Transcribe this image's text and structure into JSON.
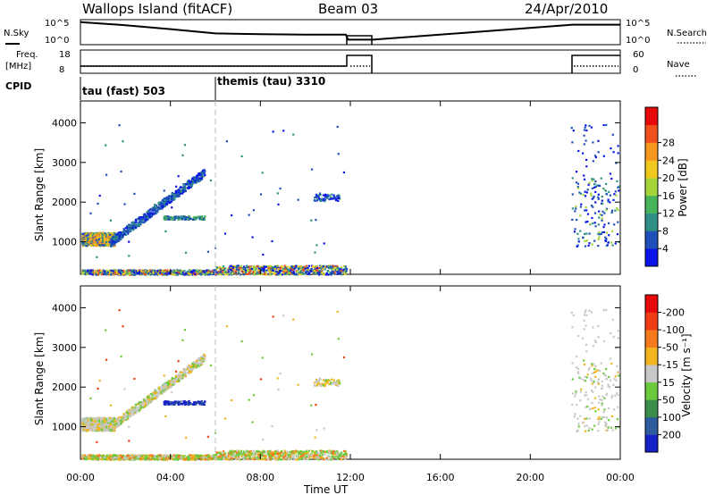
{
  "header": {
    "station": "Wallops Island (fitACF)",
    "beam": "Beam 03",
    "date": "24/Apr/2010"
  },
  "panels": {
    "nsky_label": "N.Sky",
    "nsearch_label": "N.Search",
    "nsky_ticks": [
      "10^5",
      "10^0"
    ],
    "freq_label_1": "Freq.",
    "freq_label_2": "[MHz]",
    "freq_ticks": [
      "18",
      "8"
    ],
    "nave_label": "Nave",
    "nave_ticks": [
      "60",
      "0"
    ],
    "cpid_label": "CPID",
    "cpid_entries": [
      "tau (fast) 503",
      "themis (tau) 3310"
    ]
  },
  "axes": {
    "ylabel": "Slant Range [km]",
    "xlabel": "Time UT",
    "yticks": [
      "1000",
      "2000",
      "3000",
      "4000"
    ],
    "xticks": [
      "00:00",
      "04:00",
      "08:00",
      "12:00",
      "16:00",
      "20:00",
      "00:00"
    ]
  },
  "power_scale": {
    "label": "Power [dB]",
    "ticks": [
      "4",
      "8",
      "12",
      "16",
      "20",
      "24",
      "28"
    ],
    "colors": [
      "#0a14e6",
      "#1f4fb8",
      "#2f8f86",
      "#47b35a",
      "#a4d43a",
      "#f0c81e",
      "#f5961e",
      "#f0501e",
      "#e60a0a"
    ]
  },
  "velocity_scale": {
    "label": "Velocity [m s⁻¹]",
    "ticks": [
      "200",
      "100",
      "50",
      "15",
      "-15",
      "-50",
      "-100",
      "-200"
    ],
    "colors": [
      "#1620c8",
      "#2e5a9e",
      "#3a8e4a",
      "#6ccb3c",
      "#c8c8c8",
      "#f0b41e",
      "#f57a1e",
      "#f03c14",
      "#e60a0a"
    ]
  },
  "chart_data": {
    "type": "heatmap",
    "title": "Wallops Island (fitACF)",
    "xlabel": "Time UT",
    "ylabel": "Slant Range [km]",
    "xlim": [
      0,
      24
    ],
    "ylim": [
      180,
      4550
    ],
    "regions": [
      {
        "t0": 0.0,
        "t1": 1.5,
        "r0": 920,
        "r1": 1250,
        "power": "high",
        "velocity": "-15..15",
        "comment_free": true
      },
      {
        "t0": 1.5,
        "t1": 5.5,
        "r0": 1000,
        "r1": 2700,
        "power": "low",
        "velocity": "-15..15"
      },
      {
        "t0": 3.6,
        "t1": 5.5,
        "r0": 1550,
        "r1": 1680,
        "power": "low",
        "velocity": "200"
      },
      {
        "t0": 0.0,
        "t1": 11.8,
        "r0": 180,
        "r1": 420,
        "power": "mixed",
        "velocity": "15..50"
      },
      {
        "t0": 10.3,
        "t1": 11.5,
        "r0": 2050,
        "r1": 2220,
        "power": "low",
        "velocity": "-15..15"
      },
      {
        "t0": 21.8,
        "t1": 24.0,
        "r0": 900,
        "r1": 4000,
        "power": "low",
        "velocity": "-15..15"
      }
    ],
    "nsky": {
      "t": [
        0,
        2,
        4,
        6,
        8,
        10,
        11.8,
        11.9,
        13.0,
        21.9,
        24
      ],
      "level": [
        0.9,
        0.78,
        0.62,
        0.45,
        0.42,
        0.4,
        0.4,
        0.2,
        0.2,
        0.8,
        0.8
      ]
    },
    "cpid_segments": [
      {
        "t0": 0,
        "t1": 6,
        "label": "tau (fast) 503"
      },
      {
        "t0": 6,
        "t1": 24,
        "label": "themis (tau) 3310"
      }
    ]
  }
}
